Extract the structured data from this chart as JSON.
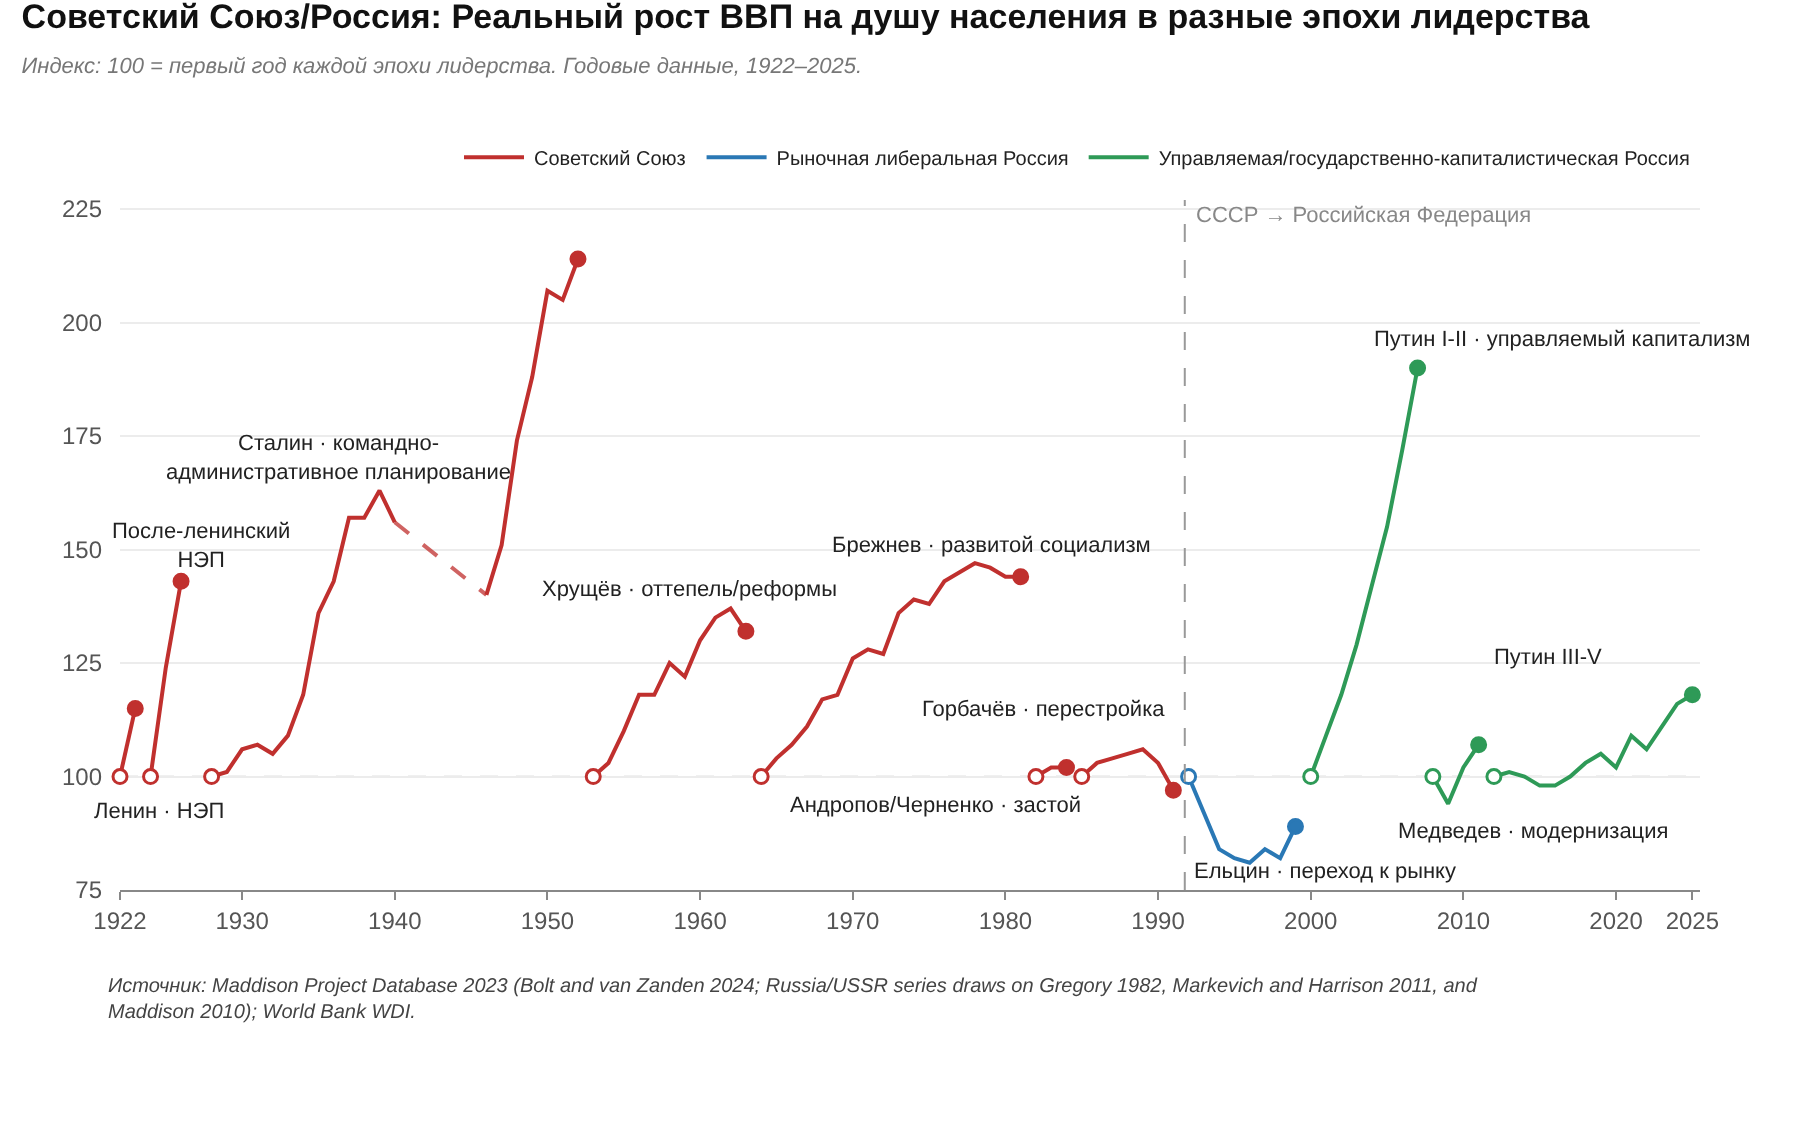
{
  "chart_data": {
    "type": "line",
    "title": "Советский Союз/Россия: Реальный рост ВВП на душу населения в разные эпохи лидерства",
    "subtitle": "Индекс: 100 = первый год каждой эпохи лидерства. Годовые данные, 1922–2025.",
    "series": [
      {
        "name": "Советский Союз",
        "color": "#c0302e",
        "x": [
          1922,
          1923
        ],
        "values": [
          100,
          115
        ]
      },
      {
        "color": "#c0302e",
        "x": [
          1924,
          1925,
          1926
        ],
        "values": [
          100,
          124,
          143
        ]
      },
      {
        "color": "#c0302e",
        "x": [
          1928,
          1929,
          1930,
          1931,
          1932,
          1933,
          1934,
          1935,
          1936,
          1937,
          1938,
          1939,
          1940,
          1941,
          1942,
          1943,
          1944,
          1945,
          1946,
          1947,
          1948,
          1949,
          1950,
          1951,
          1952
        ],
        "values": [
          100,
          101,
          106,
          107,
          105,
          109,
          118,
          136,
          143,
          157,
          157,
          163,
          156,
          null,
          null,
          null,
          null,
          null,
          140,
          151,
          174,
          188,
          207,
          205,
          214
        ]
      },
      {
        "color": "#c0302e",
        "x": [
          1953,
          1954,
          1955,
          1956,
          1957,
          1958,
          1959,
          1960,
          1961,
          1962,
          1963
        ],
        "values": [
          100,
          103,
          110,
          118,
          118,
          125,
          122,
          130,
          135,
          137,
          132
        ]
      },
      {
        "color": "#c0302e",
        "x": [
          1964,
          1965,
          1966,
          1967,
          1968,
          1969,
          1970,
          1971,
          1972,
          1973,
          1974,
          1975,
          1976,
          1977,
          1978,
          1979,
          1980,
          1981
        ],
        "values": [
          100,
          104,
          107,
          111,
          117,
          118,
          126,
          128,
          127,
          136,
          139,
          138,
          143,
          145,
          147,
          146,
          144,
          144
        ]
      },
      {
        "color": "#c0302e",
        "x": [
          1982,
          1983,
          1984
        ],
        "values": [
          100,
          102,
          102
        ]
      },
      {
        "color": "#c0302e",
        "x": [
          1985,
          1986,
          1987,
          1988,
          1989,
          1990,
          1991
        ],
        "values": [
          100,
          103,
          104,
          105,
          106,
          103,
          97
        ]
      },
      {
        "name": "Рыночная либеральная Россия",
        "color": "#2a78b5",
        "x": [
          1992,
          1993,
          1994,
          1995,
          1996,
          1997,
          1998,
          1999
        ],
        "values": [
          100,
          92,
          84,
          82,
          81,
          84,
          82,
          89
        ]
      },
      {
        "name": "Управляемая/государственно-капиталистическая Россия",
        "color": "#2e9a57",
        "x": [
          2000,
          2001,
          2002,
          2003,
          2004,
          2005,
          2006,
          2007
        ],
        "values": [
          100,
          109,
          118,
          129,
          142,
          155,
          172,
          190
        ]
      },
      {
        "color": "#2e9a57",
        "x": [
          2008,
          2009,
          2010,
          2011
        ],
        "values": [
          100,
          94,
          102,
          107
        ]
      },
      {
        "color": "#2e9a57",
        "x": [
          2012,
          2013,
          2014,
          2015,
          2016,
          2017,
          2018,
          2019,
          2020,
          2021,
          2022,
          2023,
          2024,
          2025
        ],
        "values": [
          100,
          101,
          100,
          98,
          98,
          100,
          103,
          105,
          102,
          109,
          106,
          111,
          116,
          118
        ]
      },
      {
        "type": "scatter",
        "marker": "circle",
        "x": [
          1922,
          1924,
          1928,
          1953,
          1964,
          1982,
          1985,
          1992,
          2000,
          2008,
          2012
        ],
        "values": [
          100,
          100,
          100,
          100,
          100,
          100,
          100,
          100,
          100,
          100,
          100
        ],
        "colors": [
          "#c0302e",
          "#c0302e",
          "#c0302e",
          "#c0302e",
          "#c0302e",
          "#c0302e",
          "#c0302e",
          "#2a78b5",
          "#2e9a57",
          "#2e9a57",
          "#2e9a57"
        ]
      },
      {
        "type": "scatter",
        "marker": "circle",
        "x": [
          1923,
          1926,
          1952,
          1963,
          1981,
          1984,
          1991,
          1999,
          2007,
          2011,
          2025
        ],
        "values": [
          115,
          143,
          214,
          132,
          144,
          102,
          97,
          89,
          190,
          107,
          118
        ],
        "colors": [
          "#c0302e",
          "#c0302e",
          "#c0302e",
          "#c0302e",
          "#c0302e",
          "#c0302e",
          "#c0302e",
          "#2a78b5",
          "#2e9a57",
          "#2e9a57",
          "#2e9a57"
        ]
      }
    ],
    "xlim": [
      1922,
      2025.5
    ],
    "xticks": [
      1922,
      1930,
      1940,
      1950,
      1960,
      1970,
      1980,
      1990,
      2000,
      2010,
      2020,
      2025
    ],
    "ylim": [
      75,
      227
    ],
    "yticks": [
      75,
      100,
      125,
      150,
      175,
      200,
      225
    ],
    "grid": "y",
    "legend": "top right",
    "line_style": "solid",
    "ref_lines": [
      {
        "axis": "x",
        "value": 1991.75,
        "label": "СССР → Российская Федерация",
        "color": "#999999",
        "line_style": "dashed"
      },
      {
        "axis": "y",
        "value": 100,
        "color": "#e2e2e2",
        "line_style": "dashed"
      }
    ],
    "annotations": [
      "Ленин · НЭП",
      "После-ленинский\nНЭП",
      "Сталин · командно-\nадминистративное планирование",
      "Хрущёв · оттепель/реформы",
      "Брежнев · развитой социализм",
      "Горбачёв · перестройка",
      "Андропов/Черненко · застой",
      "Ельцин · переход к рынку",
      "Путин I-II · управляемый капитализм",
      "Медведев · модернизация",
      "Путин III-V",
      "Источник: Maddison Project Database 2023 (Bolt and van Zanden 2024; Russia/USSR series draws on Gregory 1982, Markevich and Harrison 2011, and Maddison 2010); World Bank WDI."
    ]
  }
}
